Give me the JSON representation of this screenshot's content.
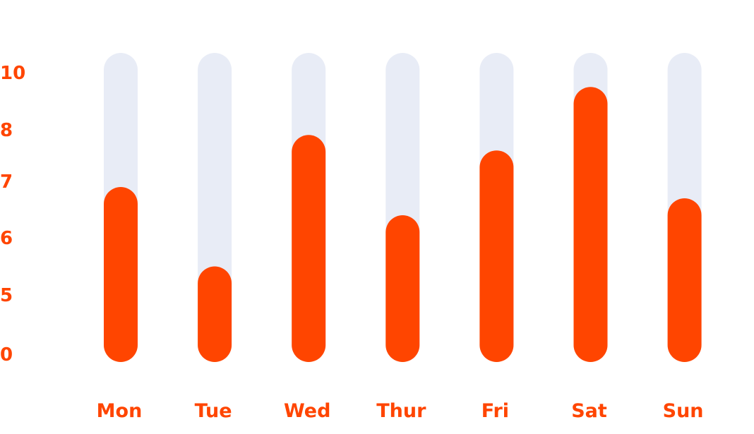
{
  "chart_data": {
    "type": "bar",
    "categories": [
      "Mon",
      "Tue",
      "Wed",
      "Thur",
      "Fri",
      "Sat",
      "Sun"
    ],
    "values": [
      6.9,
      5.5,
      7.9,
      6.4,
      7.6,
      9.5,
      6.7
    ],
    "y_tick_labels": [
      "10",
      "8",
      "7",
      "6",
      "5",
      "0"
    ],
    "title": "",
    "xlabel": "",
    "ylabel": "",
    "grid": false,
    "legend": "none",
    "colors": {
      "bar": "#FF4500",
      "track": "#E8ECF6",
      "label": "#FF4500"
    }
  }
}
